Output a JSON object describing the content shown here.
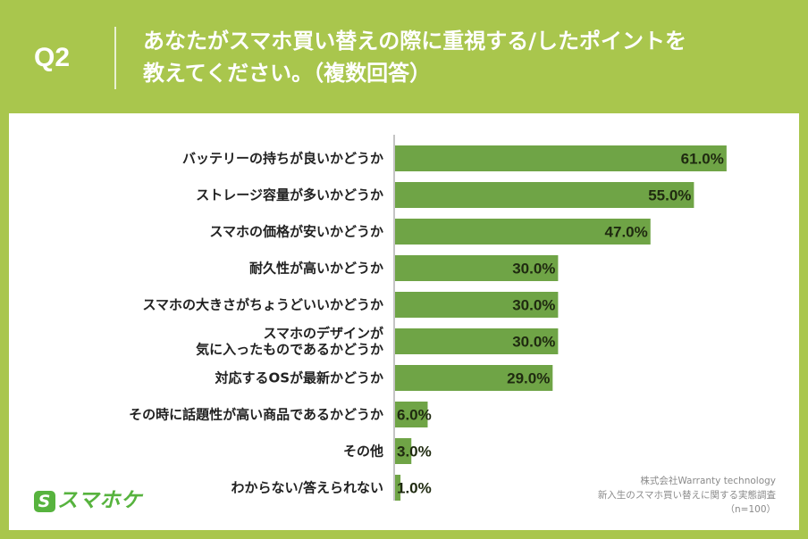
{
  "header": {
    "q_label": "Q2",
    "title_line1": "あなたがスマホ買い替えの際に重視する/したポイントを",
    "title_line2": "教えてください。（複数回答）"
  },
  "colors": {
    "bar": "#6fa446",
    "background": "#a9c64d",
    "axis": "#888888"
  },
  "logo": {
    "mark": "S",
    "text": "スマホケ"
  },
  "source": {
    "line1": "株式会社Warranty technology",
    "line2": "新入生のスマホ買い替えに関する実態調査",
    "line3": "（n=100）"
  },
  "chart_data": {
    "type": "bar",
    "orientation": "horizontal",
    "categories": [
      [
        "バッテリーの持ちが良いかどうか"
      ],
      [
        "ストレージ容量が多いかどうか"
      ],
      [
        "スマホの価格が安いかどうか"
      ],
      [
        "耐久性が高いかどうか"
      ],
      [
        "スマホの大きさがちょうどいいかどうか"
      ],
      [
        "スマホのデザインが",
        "気に入ったものであるかどうか"
      ],
      [
        "対応するOSが最新かどうか"
      ],
      [
        "その時に話題性が高い商品であるかどうか"
      ],
      [
        "その他"
      ],
      [
        "わからない/答えられない"
      ]
    ],
    "values": [
      61.0,
      55.0,
      47.0,
      30.0,
      30.0,
      30.0,
      29.0,
      6.0,
      3.0,
      1.0
    ],
    "value_labels": [
      "61.0%",
      "55.0%",
      "47.0%",
      "30.0%",
      "30.0%",
      "30.0%",
      "29.0%",
      "6.0%",
      "3.0%",
      "1.0%"
    ],
    "xlim": [
      0,
      100
    ],
    "grid": false
  }
}
